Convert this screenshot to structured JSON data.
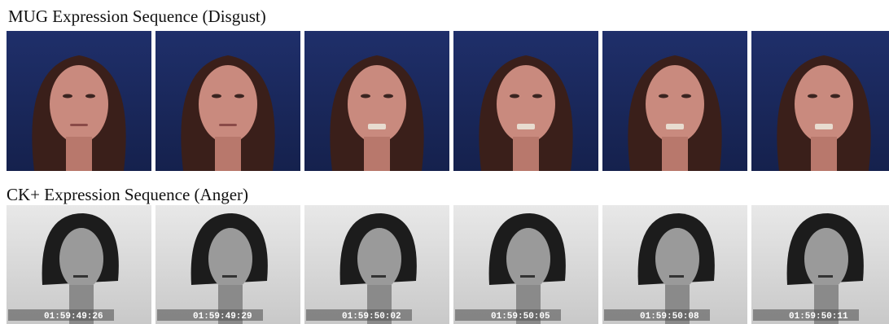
{
  "sections": [
    {
      "title": "MUG Expression Sequence (Disgust)"
    },
    {
      "title": "CK+ Expression Sequence (Anger)",
      "timestamps": [
        "01:59:49:26",
        "01:59:49:29",
        "01:59:50:02",
        "01:59:50:05",
        "01:59:50:08",
        "01:59:50:11"
      ]
    }
  ]
}
